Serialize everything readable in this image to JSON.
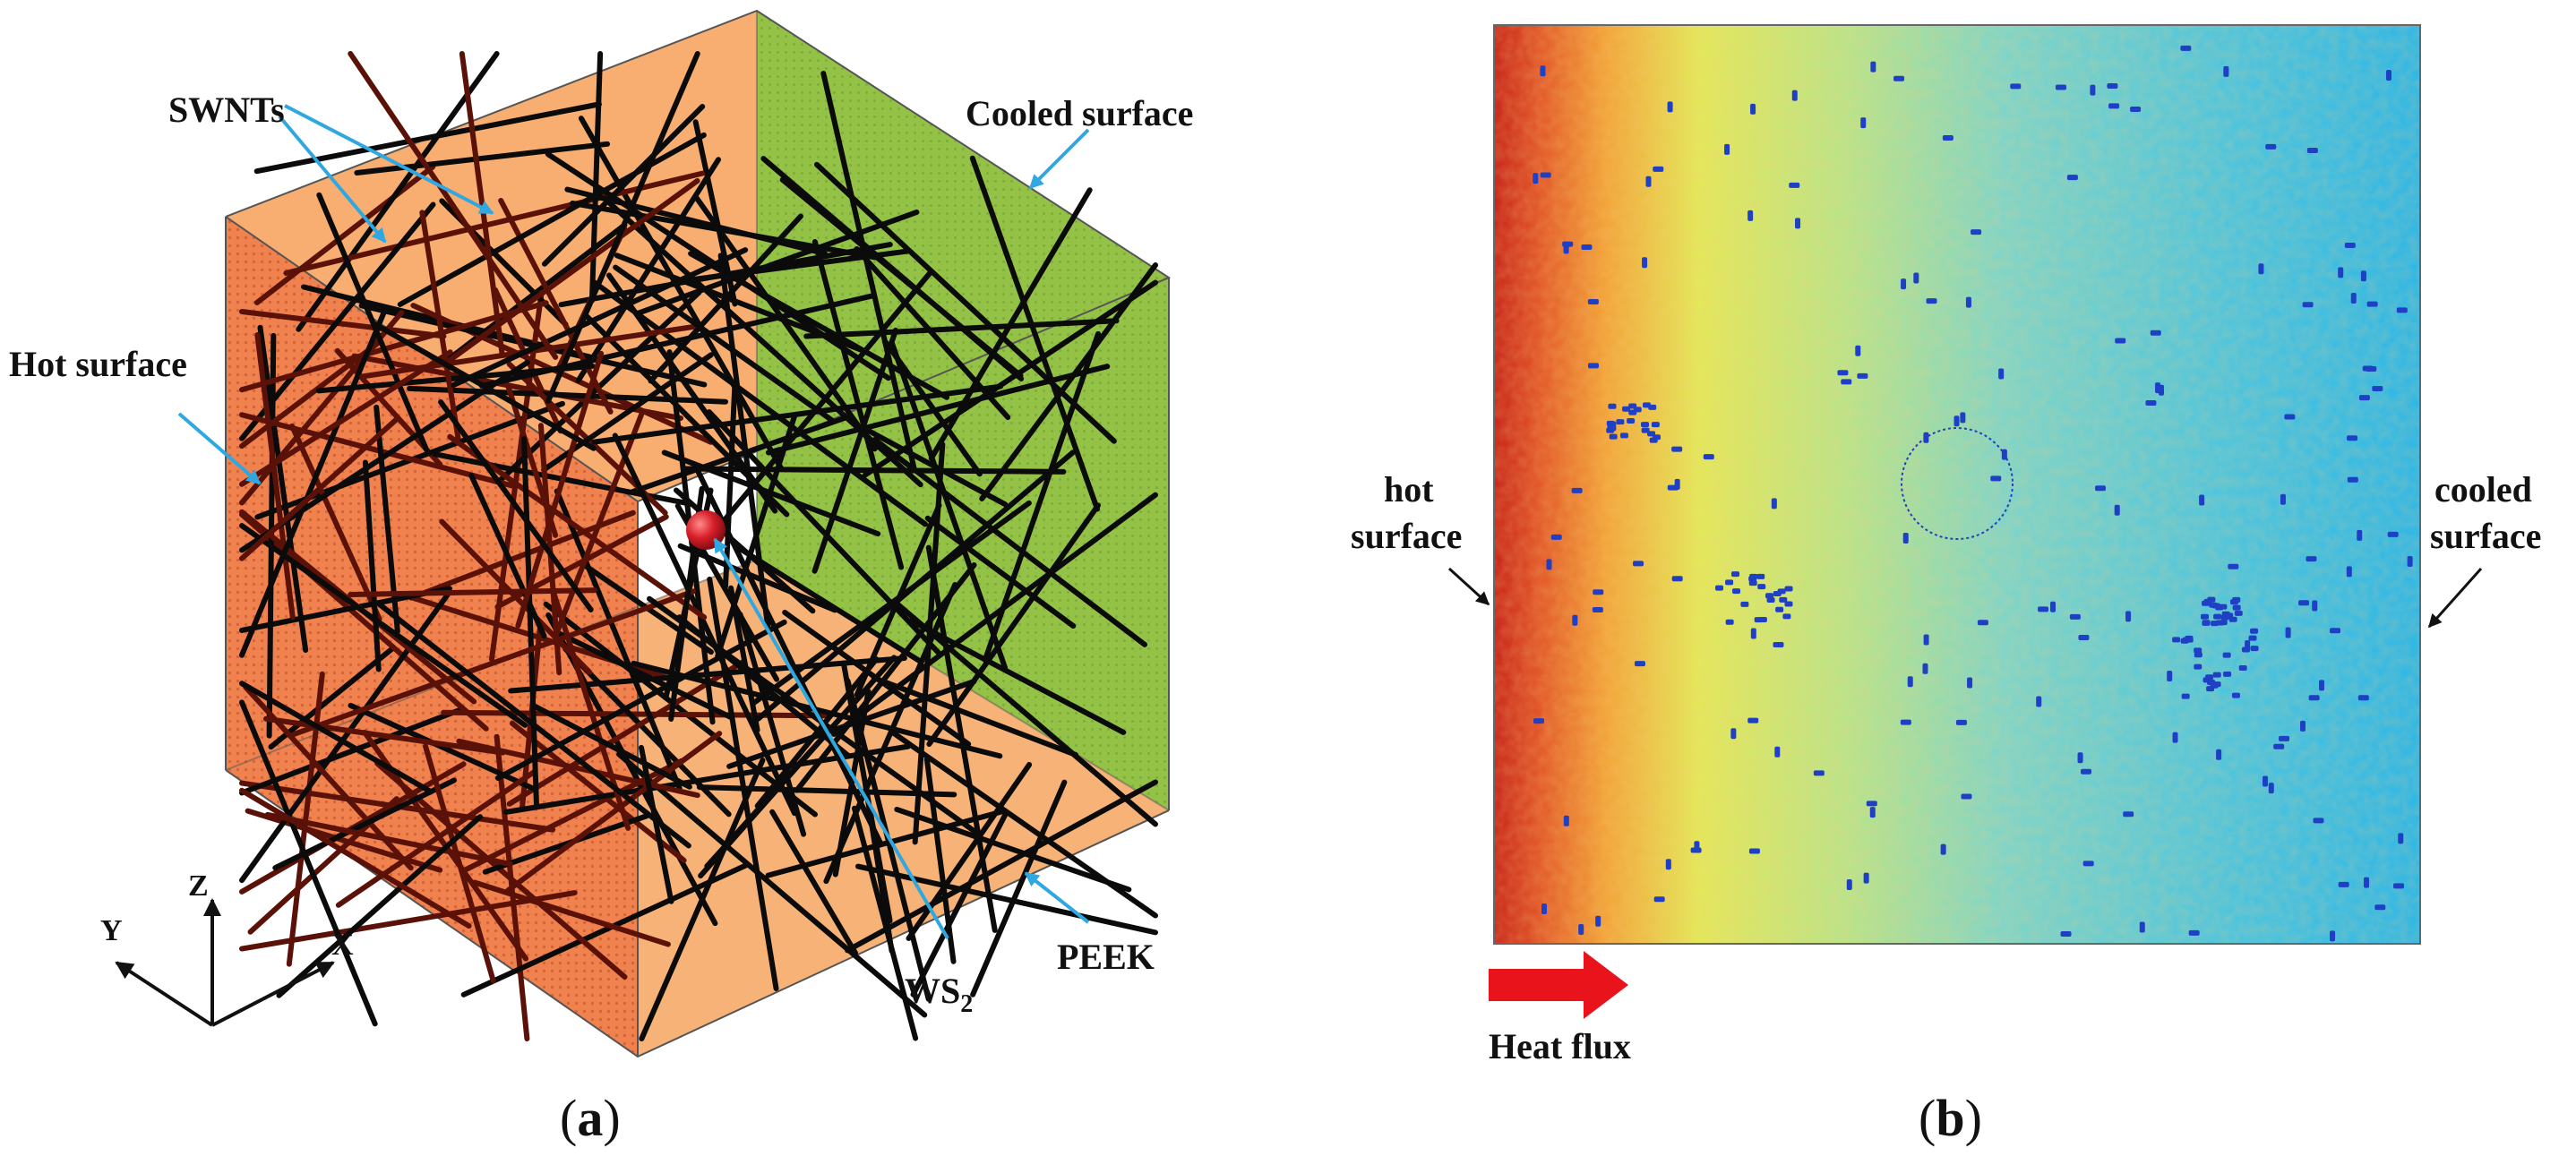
{
  "panel_a": {
    "labels": {
      "swnts": "SWNTs",
      "cooled_surface": "Cooled surface",
      "hot_surface": "Hot surface",
      "ws2_base": "WS",
      "ws2_sub": "2",
      "peek": "PEEK"
    },
    "axes": {
      "z": "Z",
      "y": "Y",
      "x": "X"
    },
    "caption": {
      "open": "(",
      "letter": "a",
      "close": ")"
    },
    "colors": {
      "hot_face": "#F0824F",
      "top_face": "#F7AE70",
      "bottom_face": "#F7AE70",
      "cooled_face": "#93C247",
      "nanotube": "#0B0B0B",
      "arrow": "#2FA7E0",
      "ws2_sphere": "#D8202A"
    }
  },
  "panel_b": {
    "labels": {
      "hot_line1": "hot",
      "hot_line2": "surface",
      "cooled_line1": "cooled",
      "cooled_line2": "surface",
      "heat_flux": "Heat flux"
    },
    "caption": {
      "open": "(",
      "letter": "b",
      "close": ")"
    },
    "colors": {
      "hot": "#C8261A",
      "warm": "#F2A43A",
      "mid": "#E3E85A",
      "cool": "#7FD5C8",
      "cold": "#2FB7E6",
      "dot": "#1F3FC4",
      "flux_arrow": "#E8131B"
    }
  }
}
